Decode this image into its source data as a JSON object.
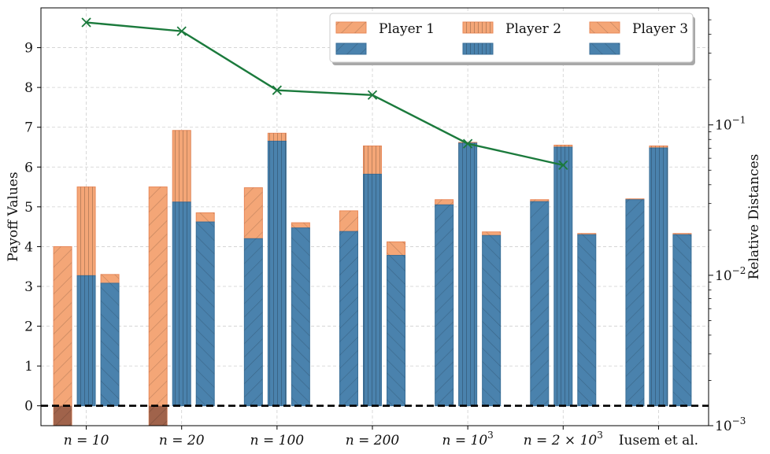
{
  "chart_data": {
    "type": "bar",
    "title": "",
    "categories": [
      "n = 10",
      "n = 20",
      "n = 100",
      "n = 200",
      "n = 10^3",
      "n = 2 × 10^3",
      "Iusem et al."
    ],
    "category_labels": [
      {
        "pre": "n = 10",
        "sup": ""
      },
      {
        "pre": "n = 20",
        "sup": ""
      },
      {
        "pre": "n = 100",
        "sup": ""
      },
      {
        "pre": "n = 200",
        "sup": ""
      },
      {
        "pre": "n = 10",
        "sup": "3"
      },
      {
        "pre": "n = 2 × 10",
        "sup": "3"
      },
      {
        "pre": "Iusem et al.",
        "sup": ""
      }
    ],
    "ylabel": "Payoff Values",
    "y2label": "Relative Distances",
    "ylim": [
      -0.5,
      10.0
    ],
    "yticks": [
      0,
      1,
      2,
      3,
      4,
      5,
      6,
      7,
      8,
      9
    ],
    "y2lim": [
      0.001,
      0.6
    ],
    "y2scale": "log",
    "y2ticks": [
      {
        "value": 0.001,
        "base": "10",
        "exp": "−3"
      },
      {
        "value": 0.01,
        "base": "10",
        "exp": "−2"
      },
      {
        "value": 0.1,
        "base": "10",
        "exp": "−1"
      }
    ],
    "grid": true,
    "legend_position": "top-right",
    "series": [
      {
        "name": "Player 1",
        "hatch": "/",
        "top_values": [
          4.0,
          5.5,
          5.48,
          4.9,
          5.18,
          5.18,
          5.2
        ],
        "base_values": [
          -0.5,
          -0.5,
          4.2,
          4.38,
          5.05,
          5.13,
          5.18
        ]
      },
      {
        "name": "Player 2",
        "hatch": "|",
        "top_values": [
          5.5,
          6.92,
          6.85,
          6.53,
          6.62,
          6.55,
          6.53
        ],
        "base_values": [
          3.27,
          5.12,
          6.65,
          5.82,
          6.6,
          6.5,
          6.48
        ]
      },
      {
        "name": "Player 3",
        "hatch": "\\",
        "top_values": [
          3.3,
          4.85,
          4.6,
          4.12,
          4.37,
          4.33,
          4.33
        ],
        "base_values": [
          3.08,
          4.62,
          4.47,
          3.78,
          4.28,
          4.3,
          4.3
        ]
      }
    ],
    "line": {
      "values": [
        0.48,
        0.42,
        0.17,
        0.158,
        0.075,
        0.054
      ]
    },
    "reference_line": 0,
    "colors": {
      "upper": "#f4a677",
      "lower": "#4a82ad",
      "upper_edge": "#e8895a",
      "lower_edge": "#3a6f98",
      "negative": "#a0634b",
      "line": "#1b7a3c"
    }
  }
}
